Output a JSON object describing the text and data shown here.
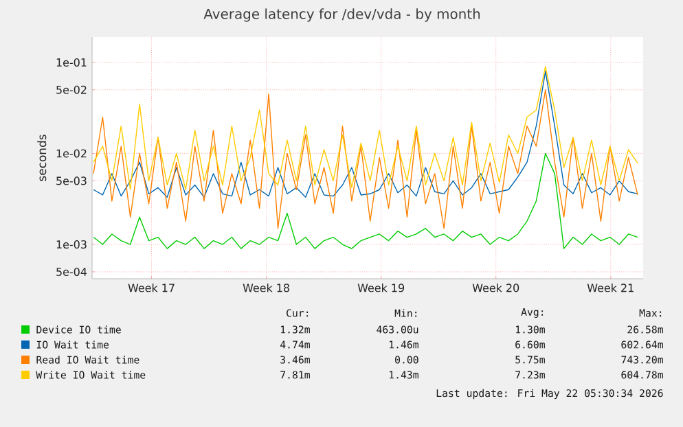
{
  "chart_data": {
    "type": "line",
    "title": "Average latency for /dev/vda - by month",
    "ylabel": "seconds",
    "log": "y",
    "grid": true,
    "legend": "bottom",
    "xlim": [
      "2026-04-18T15:00",
      "2026-05-22T05:30"
    ],
    "ylim": [
      0.00042,
      0.19
    ],
    "xticks": [
      {
        "value": "2026-04-22T06:00",
        "label": "Week 17"
      },
      {
        "value": "2026-04-29T06:00",
        "label": "Week 18"
      },
      {
        "value": "2026-05-06T06:00",
        "label": "Week 19"
      },
      {
        "value": "2026-05-13T06:00",
        "label": "Week 20"
      },
      {
        "value": "2026-05-20T06:00",
        "label": "Week 21"
      }
    ],
    "yticks": [
      {
        "value": 0.0005,
        "label": "5e-04"
      },
      {
        "value": 0.001,
        "label": "1e-03"
      },
      {
        "value": 0.005,
        "label": "5e-03"
      },
      {
        "value": 0.01,
        "label": "1e-02"
      },
      {
        "value": 0.05,
        "label": "5e-02"
      },
      {
        "value": 0.1,
        "label": "1e-01"
      }
    ],
    "x": [
      "2026-04-18T17:00",
      "2026-04-19T06:30",
      "2026-04-19T20:00",
      "2026-04-20T09:30",
      "2026-04-20T23:00",
      "2026-04-21T12:30",
      "2026-04-22T02:00",
      "2026-04-22T15:30",
      "2026-04-23T05:00",
      "2026-04-23T18:30",
      "2026-04-24T08:00",
      "2026-04-24T21:30",
      "2026-04-25T11:00",
      "2026-04-26T00:30",
      "2026-04-26T14:00",
      "2026-04-27T03:30",
      "2026-04-27T17:00",
      "2026-04-28T06:30",
      "2026-04-28T20:00",
      "2026-04-29T09:30",
      "2026-04-29T23:00",
      "2026-04-30T12:30",
      "2026-05-01T02:00",
      "2026-05-01T15:30",
      "2026-05-02T05:00",
      "2026-05-02T18:30",
      "2026-05-03T08:00",
      "2026-05-03T21:30",
      "2026-05-04T11:00",
      "2026-05-05T00:30",
      "2026-05-05T14:00",
      "2026-05-06T03:30",
      "2026-05-06T17:00",
      "2026-05-07T06:30",
      "2026-05-07T20:00",
      "2026-05-08T09:30",
      "2026-05-08T23:00",
      "2026-05-09T12:30",
      "2026-05-10T02:00",
      "2026-05-10T15:30",
      "2026-05-11T05:00",
      "2026-05-11T18:30",
      "2026-05-12T08:00",
      "2026-05-12T21:30",
      "2026-05-13T11:00",
      "2026-05-14T00:30",
      "2026-05-14T14:00",
      "2026-05-15T03:30",
      "2026-05-15T17:00",
      "2026-05-16T06:30",
      "2026-05-16T20:00",
      "2026-05-17T09:30",
      "2026-05-17T23:00",
      "2026-05-18T12:30",
      "2026-05-19T02:00",
      "2026-05-19T15:30",
      "2026-05-20T05:00",
      "2026-05-20T18:30",
      "2026-05-21T08:00",
      "2026-05-21T21:30"
    ],
    "series": [
      {
        "name": "Device IO time",
        "color": "#00cc00",
        "values": [
          0.0012,
          0.001,
          0.0013,
          0.0011,
          0.001,
          0.002,
          0.0011,
          0.0012,
          0.0009,
          0.0011,
          0.001,
          0.0012,
          0.0009,
          0.0011,
          0.001,
          0.0012,
          0.0009,
          0.0011,
          0.001,
          0.0012,
          0.0011,
          0.0022,
          0.001,
          0.0012,
          0.0009,
          0.0011,
          0.0012,
          0.001,
          0.0009,
          0.0011,
          0.0012,
          0.0013,
          0.0011,
          0.0014,
          0.0012,
          0.0013,
          0.0015,
          0.0012,
          0.0013,
          0.0011,
          0.0014,
          0.0012,
          0.0013,
          0.001,
          0.0012,
          0.0011,
          0.0013,
          0.0018,
          0.003,
          0.01,
          0.006,
          0.0009,
          0.0012,
          0.001,
          0.0013,
          0.0011,
          0.0012,
          0.001,
          0.0013,
          0.0012
        ]
      },
      {
        "name": "IO Wait time",
        "color": "#0066b3",
        "values": [
          0.004,
          0.0035,
          0.006,
          0.0034,
          0.005,
          0.008,
          0.0036,
          0.0042,
          0.0033,
          0.007,
          0.0035,
          0.0045,
          0.0033,
          0.006,
          0.0036,
          0.0034,
          0.008,
          0.0035,
          0.004,
          0.0034,
          0.007,
          0.0036,
          0.0042,
          0.0033,
          0.006,
          0.0035,
          0.0034,
          0.0045,
          0.007,
          0.0035,
          0.0036,
          0.004,
          0.006,
          0.0037,
          0.0045,
          0.0034,
          0.007,
          0.0038,
          0.0036,
          0.005,
          0.0035,
          0.0042,
          0.006,
          0.0036,
          0.0038,
          0.004,
          0.0055,
          0.008,
          0.02,
          0.08,
          0.02,
          0.0045,
          0.0036,
          0.006,
          0.0037,
          0.0042,
          0.0035,
          0.005,
          0.0038,
          0.0036
        ]
      },
      {
        "name": "Read IO Wait time",
        "color": "#ff8000",
        "values": [
          0.006,
          0.025,
          0.003,
          0.012,
          0.002,
          0.01,
          0.0028,
          0.015,
          0.0025,
          0.008,
          0.0018,
          0.012,
          0.003,
          0.018,
          0.0022,
          0.006,
          0.0028,
          0.014,
          0.0025,
          0.045,
          0.0015,
          0.01,
          0.004,
          0.016,
          0.0028,
          0.007,
          0.0022,
          0.02,
          0.003,
          0.012,
          0.0018,
          0.009,
          0.0025,
          0.014,
          0.002,
          0.018,
          0.0028,
          0.006,
          0.0015,
          0.012,
          0.0025,
          0.02,
          0.003,
          0.008,
          0.0022,
          0.012,
          0.006,
          0.02,
          0.012,
          0.05,
          0.008,
          0.002,
          0.015,
          0.0025,
          0.01,
          0.0018,
          0.012,
          0.003,
          0.009,
          0.0035
        ]
      },
      {
        "name": "Write IO Wait time",
        "color": "#ffcc00",
        "values": [
          0.008,
          0.012,
          0.005,
          0.02,
          0.004,
          0.035,
          0.005,
          0.015,
          0.0045,
          0.01,
          0.004,
          0.018,
          0.005,
          0.012,
          0.0045,
          0.02,
          0.005,
          0.009,
          0.03,
          0.006,
          0.0045,
          0.014,
          0.005,
          0.02,
          0.0045,
          0.011,
          0.005,
          0.016,
          0.0042,
          0.013,
          0.005,
          0.018,
          0.0045,
          0.012,
          0.005,
          0.02,
          0.0045,
          0.01,
          0.005,
          0.015,
          0.0045,
          0.022,
          0.005,
          0.013,
          0.0048,
          0.016,
          0.01,
          0.025,
          0.03,
          0.09,
          0.03,
          0.007,
          0.015,
          0.005,
          0.014,
          0.0045,
          0.012,
          0.005,
          0.011,
          0.0078
        ]
      }
    ],
    "annotations": [
      "Cur:",
      "Min:",
      "Avg:",
      "Max:",
      "1.32m",
      "463.00u",
      "1.30m",
      "26.58m",
      "4.74m",
      "1.46m",
      "6.60m",
      "602.64m",
      "3.46m",
      "0.00",
      "5.75m",
      "743.20m",
      "7.81m",
      "1.43m",
      "7.23m",
      "604.78m",
      "Last update: Fri May 22 05:30:34 2026"
    ]
  }
}
